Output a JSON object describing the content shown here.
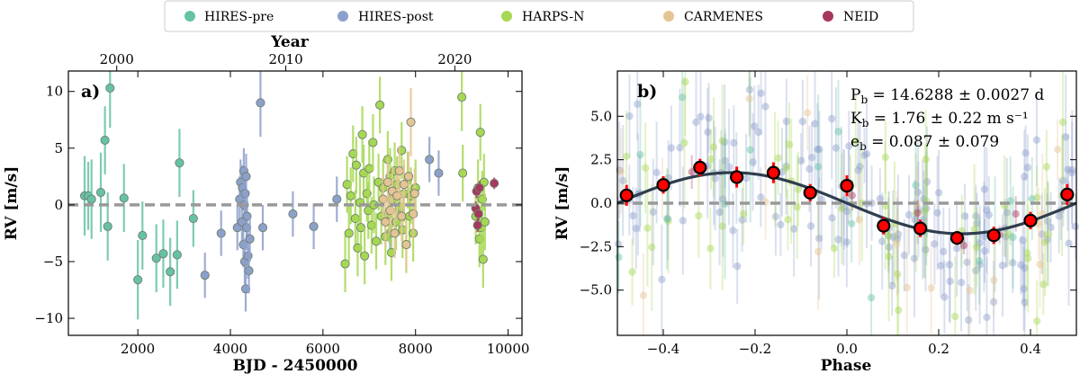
{
  "colors": {
    "HIRES-pre": "#66c2a5",
    "HIRES-post": "#8da0cb",
    "HARPS-N": "#a6d854",
    "CARMENES": "#e5c494",
    "NEID": "#a6385e",
    "binned": "#ff0000",
    "model": "#2f3e4e",
    "zero_line": "#999999"
  },
  "legend": {
    "entries": [
      "HIRES-pre",
      "HIRES-post",
      "HARPS-N",
      "CARMENES",
      "NEID"
    ]
  },
  "chart_data": [
    {
      "type": "scatter",
      "panel_label": "a)",
      "xlabel": "BJD - 2450000",
      "ylabel": "RV [m/s]",
      "top_axis_label": "Year",
      "xlim": [
        500,
        10300
      ],
      "ylim": [
        -11.5,
        11.8
      ],
      "xticks": [
        2000,
        4000,
        6000,
        8000,
        10000
      ],
      "xtick_labels": [
        "2000",
        "4000",
        "6000",
        "8000",
        "10000"
      ],
      "yticks": [
        -10,
        -5,
        0,
        5,
        10
      ],
      "ytick_labels": [
        "−10",
        "−5",
        "0",
        "5",
        "10"
      ],
      "top_ticks": [
        {
          "label": "2000",
          "bjd": 1544
        },
        {
          "label": "2010",
          "bjd": 5197
        },
        {
          "label": "2020",
          "bjd": 8849
        }
      ],
      "zero_line": 0,
      "series": [
        {
          "name": "HIRES-pre",
          "x": [
            850,
            930,
            1000,
            1200,
            1290,
            1350,
            1400,
            1700,
            2000,
            2100,
            2400,
            2550,
            2700,
            2850,
            2900,
            3200
          ],
          "y": [
            0.8,
            0.8,
            0.5,
            1.1,
            5.7,
            -1.9,
            10.3,
            0.6,
            -6.6,
            -2.7,
            -4.7,
            -4.3,
            -5.9,
            -4.4,
            3.7,
            -1.2
          ],
          "err": [
            3.5,
            3.0,
            3.5,
            3.5,
            3.0,
            3.0,
            3.5,
            3.0,
            3.5,
            3.0,
            3.0,
            3.0,
            3.0,
            3.0,
            3.0,
            2.5
          ]
        },
        {
          "name": "HIRES-post",
          "x": [
            3450,
            3800,
            4150,
            4200,
            4220,
            4250,
            4260,
            4280,
            4290,
            4300,
            4310,
            4320,
            4330,
            4340,
            4350,
            4360,
            4380,
            4400,
            4420,
            4650,
            4700,
            5350,
            5800,
            6300,
            7450,
            7650,
            8300,
            8500
          ],
          "y": [
            -6.2,
            -2.5,
            -2.0,
            0.5,
            2.0,
            -1.5,
            1.5,
            -3.5,
            3.0,
            0.0,
            -5.0,
            1.0,
            -7.4,
            2.5,
            -2.0,
            -1.0,
            -4.5,
            -5.8,
            -3.0,
            9.0,
            -2.0,
            -0.8,
            -1.9,
            0.5,
            -2.5,
            -0.5,
            4.0,
            2.8
          ],
          "err": [
            2.0,
            2.0,
            2.0,
            2.0,
            2.0,
            2.0,
            2.0,
            2.0,
            2.0,
            2.0,
            2.0,
            2.0,
            2.0,
            2.0,
            2.0,
            2.0,
            2.0,
            2.0,
            2.0,
            3.0,
            2.0,
            2.0,
            2.0,
            2.0,
            2.0,
            2.0,
            2.0,
            2.0
          ]
        },
        {
          "name": "HARPS-N",
          "x": [
            6480,
            6520,
            6560,
            6600,
            6650,
            6700,
            6720,
            6750,
            6800,
            6820,
            6850,
            6880,
            6900,
            6950,
            6980,
            7000,
            7050,
            7080,
            7100,
            7150,
            7200,
            7230,
            7260,
            7300,
            7350,
            7400,
            7420,
            7450,
            7480,
            7500,
            7550,
            7580,
            7600,
            7650,
            7700,
            7720,
            7750,
            7800,
            7830,
            7870,
            7900,
            7950,
            8000,
            9000,
            9020,
            9300,
            9350,
            9380,
            9400,
            9420,
            9440,
            9460,
            9480,
            9500
          ],
          "y": [
            -5.2,
            1.8,
            -2.5,
            0.8,
            4.5,
            -1.2,
            3.5,
            -3.8,
            0.2,
            -2.0,
            6.2,
            2.8,
            -4.5,
            1.0,
            -0.5,
            3.2,
            -1.8,
            5.5,
            0.0,
            -3.2,
            2.0,
            8.8,
            -1.0,
            1.5,
            -2.8,
            4.0,
            -0.8,
            2.5,
            -4.2,
            0.5,
            3.0,
            -1.5,
            1.8,
            -0.2,
            4.8,
            -2.2,
            1.0,
            -3.5,
            2.2,
            -1.0,
            0.8,
            -2.5,
            1.5,
            9.5,
            2.8,
            -1.0,
            1.5,
            -3.0,
            6.4,
            -2.0,
            0.5,
            -4.8,
            2.0,
            -1.5
          ],
          "err": [
            2.5,
            2.5,
            2.5,
            2.5,
            2.5,
            2.5,
            2.5,
            2.5,
            2.5,
            2.5,
            2.5,
            2.5,
            2.5,
            2.5,
            2.5,
            2.5,
            2.5,
            2.5,
            2.5,
            2.5,
            2.5,
            2.5,
            2.5,
            2.5,
            2.5,
            2.5,
            2.5,
            2.5,
            2.5,
            2.5,
            2.5,
            2.5,
            2.5,
            2.5,
            2.5,
            2.5,
            2.5,
            2.5,
            2.5,
            2.5,
            2.5,
            2.5,
            2.5,
            3.0,
            2.5,
            2.5,
            2.5,
            2.5,
            2.5,
            2.5,
            2.5,
            2.5,
            2.5,
            2.5
          ]
        },
        {
          "name": "CARMENES",
          "x": [
            7300,
            7350,
            7400,
            7450,
            7500,
            7550,
            7600,
            7650,
            7700,
            7750,
            7800,
            7850,
            7900,
            7950,
            7980
          ],
          "y": [
            0.5,
            -1.5,
            2.0,
            -0.5,
            1.2,
            -2.5,
            0.8,
            3.0,
            -1.0,
            1.8,
            -3.5,
            2.5,
            7.3,
            -0.8,
            1.0
          ],
          "err": [
            2.2,
            2.2,
            2.2,
            2.2,
            2.2,
            2.2,
            2.2,
            2.2,
            2.2,
            2.2,
            2.2,
            2.2,
            3.0,
            2.2,
            2.2
          ]
        },
        {
          "name": "NEID",
          "x": [
            9300,
            9320,
            9340,
            9360,
            9380,
            9700
          ],
          "y": [
            -0.3,
            1.2,
            -1.8,
            -0.8,
            1.5,
            1.9
          ],
          "err": [
            0.6,
            0.6,
            0.6,
            0.6,
            0.6,
            0.5
          ]
        }
      ]
    },
    {
      "type": "scatter",
      "panel_label": "b)",
      "xlabel": "Phase",
      "ylabel": "RV [m/s]",
      "xlim": [
        -0.5,
        0.5
      ],
      "ylim": [
        -7.6,
        7.6
      ],
      "xticks": [
        -0.4,
        -0.2,
        0.0,
        0.2,
        0.4
      ],
      "xtick_labels": [
        "−0.4",
        "−0.2",
        "0.0",
        "0.2",
        "0.4"
      ],
      "yticks": [
        -5.0,
        -2.5,
        0.0,
        2.5,
        5.0
      ],
      "ytick_labels": [
        "−5.0",
        "−2.5",
        "0.0",
        "2.5",
        "5.0"
      ],
      "zero_line": 0,
      "model": {
        "K": 1.76,
        "phase_of_max": -0.25
      },
      "binned": {
        "x": [
          -0.48,
          -0.4,
          -0.32,
          -0.24,
          -0.16,
          -0.08,
          0.0,
          0.08,
          0.16,
          0.24,
          0.32,
          0.4,
          0.48
        ],
        "y": [
          0.45,
          1.05,
          2.05,
          1.5,
          1.75,
          0.6,
          1.0,
          -1.3,
          -1.45,
          -2.0,
          -1.85,
          -1.0,
          0.5
        ],
        "err": [
          0.6,
          0.5,
          0.5,
          0.6,
          0.6,
          0.5,
          0.6,
          0.5,
          0.5,
          0.4,
          0.5,
          0.5,
          0.6
        ]
      },
      "annotations": {
        "period": "P_b = 14.6288 ± 0.0027 d",
        "amplitude": "K_b = 1.76 ± 0.22 m s⁻¹",
        "eccentricity": "e_b = 0.087 ± 0.079"
      }
    }
  ]
}
